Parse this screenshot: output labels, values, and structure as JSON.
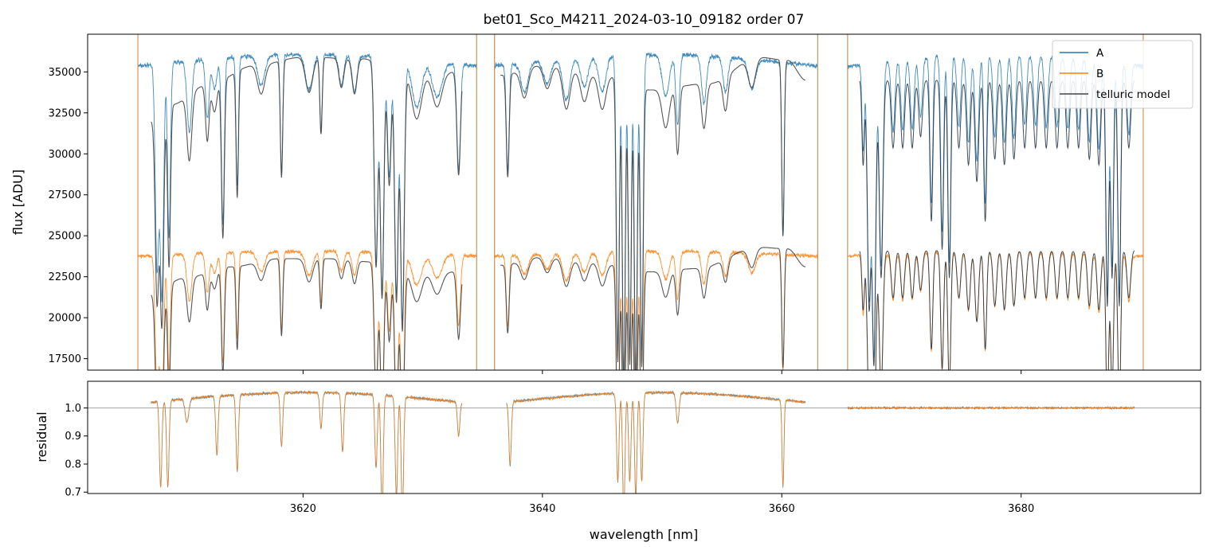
{
  "chart_data": {
    "type": "line",
    "title": "bet01_Sco_M4211_2024-03-10_09182  order 07",
    "xlabel": "wavelength [nm]",
    "xlim": [
      3602,
      3695
    ],
    "xticks": [
      3620,
      3640,
      3660,
      3680
    ],
    "colors": {
      "A": "#1f77b4",
      "B": "#ff7f0e",
      "model": "#444444",
      "ref": "#888888"
    },
    "legend": {
      "placement": "top-right",
      "entries": [
        "A",
        "B",
        "telluric model"
      ]
    },
    "panels": [
      {
        "id": "flux",
        "ylabel": "flux [ADU]",
        "ylim": [
          16800,
          37300
        ],
        "yticks": [
          17500,
          20000,
          22500,
          25000,
          27500,
          30000,
          32500,
          35000
        ],
        "series": [
          {
            "name": "A",
            "segments": [
              [
                3606.2,
                3634.5
              ],
              [
                3636.0,
                3663.0
              ],
              [
                3665.5,
                3690.2
              ]
            ],
            "continuum": 35700,
            "sweep": 700,
            "noise": 180
          },
          {
            "name": "B",
            "segments": [
              [
                3606.2,
                3634.5
              ],
              [
                3636.0,
                3663.0
              ],
              [
                3665.5,
                3690.2
              ]
            ],
            "continuum": 23900,
            "sweep": 300,
            "noise": 140
          },
          {
            "name": "telluric model A",
            "segments": [
              [
                3607.3,
                3633.3
              ],
              [
                3636.5,
                3662.0
              ],
              [
                3666.5,
                3689.5
              ]
            ],
            "anchors": {
              "x": [
                3607.3,
                3609.0,
                3612.0,
                3616.0,
                3620.0,
                3625.0,
                3628.0,
                3633.3,
                3636.5,
                3640.0,
                3645.0,
                3649.0,
                3654.0,
                3658.0,
                3660.5,
                3662.0
              ],
              "y": [
                32000,
                33000,
                34200,
                35400,
                35900,
                35800,
                34900,
                35000,
                34800,
                35400,
                34800,
                33900,
                34300,
                35900,
                35700,
                34500
              ]
            }
          },
          {
            "name": "telluric model B",
            "segments": [
              [
                3607.3,
                3633.3
              ],
              [
                3636.5,
                3662.0
              ],
              [
                3666.5,
                3689.5
              ]
            ],
            "anchors": {
              "x": [
                3607.3,
                3610.0,
                3614.0,
                3618.0,
                3622.0,
                3626.0,
                3629.0,
                3633.3,
                3636.5,
                3640.0,
                3644.0,
                3649.0,
                3653.0,
                3658.0,
                3660.5,
                3662.0
              ],
              "y": [
                21400,
                22400,
                23100,
                23600,
                23600,
                23400,
                22800,
                22800,
                23200,
                23700,
                23400,
                22800,
                23000,
                24300,
                24200,
                23100
              ]
            }
          }
        ]
      },
      {
        "id": "residual",
        "ylabel": "residual",
        "ylim": [
          0.695,
          1.095
        ],
        "yticks": [
          0.7,
          0.8,
          0.9,
          1.0
        ],
        "reference_line": 1.0,
        "series": [
          {
            "name": "A",
            "segments": [
              [
                3607.3,
                3633.3
              ],
              [
                3637.0,
                3662.0
              ],
              [
                3665.5,
                3689.5
              ]
            ]
          },
          {
            "name": "B",
            "segments": [
              [
                3607.3,
                3633.3
              ],
              [
                3637.0,
                3662.0
              ],
              [
                3665.5,
                3689.5
              ]
            ]
          }
        ]
      }
    ],
    "absorption_lines": [
      {
        "x": 3607.8,
        "d": 0.35,
        "w": 0.15
      },
      {
        "x": 3608.2,
        "d": 0.4,
        "w": 0.15
      },
      {
        "x": 3608.8,
        "d": 0.3,
        "w": 0.12
      },
      {
        "x": 3610.5,
        "d": 0.12,
        "w": 0.2
      },
      {
        "x": 3612.0,
        "d": 0.1,
        "w": 0.15
      },
      {
        "x": 3612.6,
        "d": 0.05,
        "w": 0.2
      },
      {
        "x": 3613.3,
        "d": 0.28,
        "w": 0.12
      },
      {
        "x": 3614.5,
        "d": 0.22,
        "w": 0.1
      },
      {
        "x": 3616.5,
        "d": 0.05,
        "w": 0.3
      },
      {
        "x": 3618.2,
        "d": 0.2,
        "w": 0.1
      },
      {
        "x": 3620.5,
        "d": 0.06,
        "w": 0.3
      },
      {
        "x": 3621.5,
        "d": 0.13,
        "w": 0.1
      },
      {
        "x": 3623.2,
        "d": 0.05,
        "w": 0.2
      },
      {
        "x": 3624.3,
        "d": 0.06,
        "w": 0.2
      },
      {
        "x": 3626.1,
        "d": 0.35,
        "w": 0.15
      },
      {
        "x": 3626.6,
        "d": 0.4,
        "w": 0.15
      },
      {
        "x": 3627.2,
        "d": 0.2,
        "w": 0.15
      },
      {
        "x": 3627.8,
        "d": 0.4,
        "w": 0.15
      },
      {
        "x": 3628.3,
        "d": 0.45,
        "w": 0.15
      },
      {
        "x": 3629.5,
        "d": 0.08,
        "w": 0.4
      },
      {
        "x": 3631.2,
        "d": 0.06,
        "w": 0.4
      },
      {
        "x": 3633.0,
        "d": 0.18,
        "w": 0.15
      },
      {
        "x": 3637.1,
        "d": 0.18,
        "w": 0.12
      },
      {
        "x": 3638.5,
        "d": 0.05,
        "w": 0.3
      },
      {
        "x": 3640.4,
        "d": 0.04,
        "w": 0.3
      },
      {
        "x": 3642.0,
        "d": 0.07,
        "w": 0.3
      },
      {
        "x": 3643.5,
        "d": 0.05,
        "w": 0.3
      },
      {
        "x": 3645.0,
        "d": 0.06,
        "w": 0.3
      },
      {
        "x": 3646.3,
        "d": 0.5,
        "w": 0.12
      },
      {
        "x": 3646.8,
        "d": 0.55,
        "w": 0.12
      },
      {
        "x": 3647.3,
        "d": 0.5,
        "w": 0.12
      },
      {
        "x": 3647.8,
        "d": 0.55,
        "w": 0.12
      },
      {
        "x": 3648.3,
        "d": 0.5,
        "w": 0.12
      },
      {
        "x": 3650.3,
        "d": 0.07,
        "w": 0.3
      },
      {
        "x": 3651.3,
        "d": 0.12,
        "w": 0.15
      },
      {
        "x": 3653.5,
        "d": 0.08,
        "w": 0.2
      },
      {
        "x": 3655.3,
        "d": 0.06,
        "w": 0.2
      },
      {
        "x": 3657.5,
        "d": 0.05,
        "w": 0.3
      },
      {
        "x": 3660.1,
        "d": 0.3,
        "w": 0.1
      },
      {
        "x": 3666.8,
        "d": 0.15,
        "w": 0.1
      },
      {
        "x": 3667.3,
        "d": 0.4,
        "w": 0.15
      },
      {
        "x": 3667.7,
        "d": 0.5,
        "w": 0.15
      },
      {
        "x": 3668.3,
        "d": 0.35,
        "w": 0.15
      },
      {
        "x": 3669.3,
        "d": 0.12,
        "w": 0.15
      },
      {
        "x": 3670.1,
        "d": 0.12,
        "w": 0.15
      },
      {
        "x": 3670.9,
        "d": 0.12,
        "w": 0.15
      },
      {
        "x": 3671.6,
        "d": 0.1,
        "w": 0.15
      },
      {
        "x": 3672.5,
        "d": 0.25,
        "w": 0.12
      },
      {
        "x": 3673.4,
        "d": 0.3,
        "w": 0.12
      },
      {
        "x": 3674.0,
        "d": 0.35,
        "w": 0.12
      },
      {
        "x": 3674.8,
        "d": 0.12,
        "w": 0.15
      },
      {
        "x": 3675.6,
        "d": 0.15,
        "w": 0.15
      },
      {
        "x": 3676.3,
        "d": 0.18,
        "w": 0.15
      },
      {
        "x": 3677.0,
        "d": 0.25,
        "w": 0.12
      },
      {
        "x": 3677.8,
        "d": 0.14,
        "w": 0.15
      },
      {
        "x": 3678.6,
        "d": 0.15,
        "w": 0.15
      },
      {
        "x": 3679.4,
        "d": 0.14,
        "w": 0.15
      },
      {
        "x": 3680.3,
        "d": 0.12,
        "w": 0.15
      },
      {
        "x": 3681.2,
        "d": 0.12,
        "w": 0.15
      },
      {
        "x": 3682.1,
        "d": 0.12,
        "w": 0.15
      },
      {
        "x": 3683.0,
        "d": 0.12,
        "w": 0.15
      },
      {
        "x": 3683.9,
        "d": 0.12,
        "w": 0.15
      },
      {
        "x": 3684.8,
        "d": 0.12,
        "w": 0.15
      },
      {
        "x": 3685.7,
        "d": 0.14,
        "w": 0.15
      },
      {
        "x": 3686.5,
        "d": 0.15,
        "w": 0.15
      },
      {
        "x": 3687.2,
        "d": 0.4,
        "w": 0.12
      },
      {
        "x": 3687.6,
        "d": 0.35,
        "w": 0.12
      },
      {
        "x": 3688.2,
        "d": 0.4,
        "w": 0.12
      },
      {
        "x": 3689.0,
        "d": 0.12,
        "w": 0.15
      }
    ],
    "residual_features": [
      {
        "x": 3608.1,
        "d": 0.3,
        "w": 0.1
      },
      {
        "x": 3608.7,
        "d": 0.3,
        "w": 0.1
      },
      {
        "x": 3610.3,
        "d": 0.08,
        "w": 0.15
      },
      {
        "x": 3612.8,
        "d": 0.2,
        "w": 0.1
      },
      {
        "x": 3614.5,
        "d": 0.26,
        "w": 0.1
      },
      {
        "x": 3618.2,
        "d": 0.18,
        "w": 0.1
      },
      {
        "x": 3621.5,
        "d": 0.12,
        "w": 0.1
      },
      {
        "x": 3623.3,
        "d": 0.2,
        "w": 0.1
      },
      {
        "x": 3626.1,
        "d": 0.25,
        "w": 0.1
      },
      {
        "x": 3626.6,
        "d": 0.4,
        "w": 0.1
      },
      {
        "x": 3627.8,
        "d": 0.35,
        "w": 0.1
      },
      {
        "x": 3628.3,
        "d": 0.4,
        "w": 0.1
      },
      {
        "x": 3633.0,
        "d": 0.12,
        "w": 0.1
      },
      {
        "x": 3637.3,
        "d": 0.22,
        "w": 0.1
      },
      {
        "x": 3646.3,
        "d": 0.3,
        "w": 0.1
      },
      {
        "x": 3646.8,
        "d": 0.4,
        "w": 0.1
      },
      {
        "x": 3647.3,
        "d": 0.3,
        "w": 0.1
      },
      {
        "x": 3647.8,
        "d": 0.35,
        "w": 0.1
      },
      {
        "x": 3648.3,
        "d": 0.3,
        "w": 0.1
      },
      {
        "x": 3651.3,
        "d": 0.1,
        "w": 0.12
      },
      {
        "x": 3660.1,
        "d": 0.3,
        "w": 0.08
      }
    ]
  }
}
